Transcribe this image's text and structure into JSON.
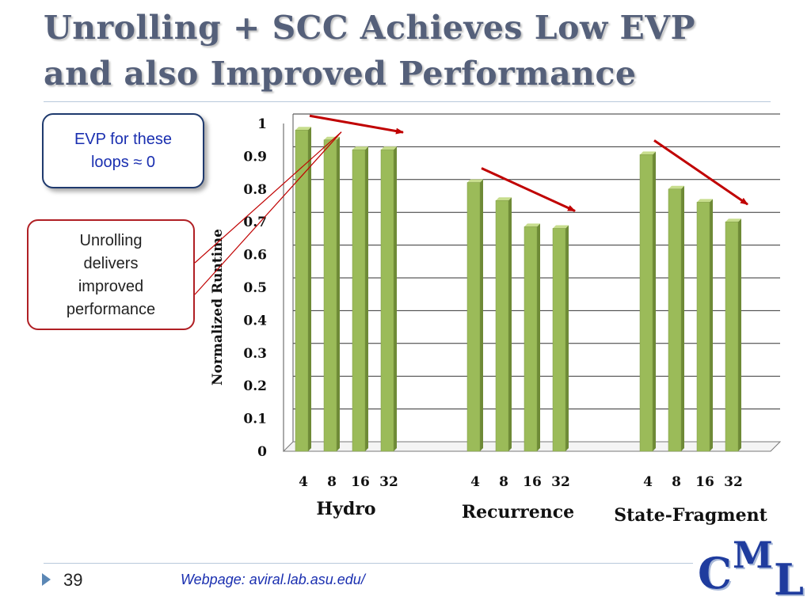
{
  "slide": {
    "title_line1": "Unrolling + SCC Achieves Low EVP",
    "title_line2": "and also Improved Performance",
    "callout_evp_line1": "EVP for these",
    "callout_evp_line2": "loops ≈ 0",
    "callout_unroll_lines": [
      "Unrolling",
      "delivers",
      "improved",
      "performance"
    ],
    "page_number": "39",
    "footer_url": "Webpage: aviral.lab.asu.edu/",
    "logo": {
      "c": "C",
      "m": "M",
      "l": "L"
    }
  },
  "colors": {
    "bar_front": "#9bbb59",
    "bar_side": "#6e8a36",
    "bar_top": "#c7dd8d",
    "arrow": "#c00000",
    "title": "#55607a",
    "callout_evp_text": "#1a2fb0",
    "callout_evp_border": "#1f3a6e",
    "callout_unroll_border": "#b01f24"
  },
  "chart_data": {
    "type": "bar",
    "ylabel": "Normalized Runtime",
    "ylim": [
      0,
      1
    ],
    "yticks": [
      "0",
      "0.1",
      "0.2",
      "0.3",
      "0.4",
      "0.5",
      "0.6",
      "0.7",
      "0.8",
      "0.9",
      "1"
    ],
    "grid": true,
    "groups": [
      {
        "name": "Hydro",
        "categories": [
          "4",
          "8",
          "16",
          "32"
        ],
        "values": [
          0.98,
          0.95,
          0.92,
          0.92
        ]
      },
      {
        "name": "Recurrence",
        "categories": [
          "4",
          "8",
          "16",
          "32"
        ],
        "values": [
          0.82,
          0.765,
          0.685,
          0.68
        ]
      },
      {
        "name": "State-Fragment",
        "categories": [
          "4",
          "8",
          "16",
          "32"
        ],
        "values": [
          0.905,
          0.8,
          0.76,
          0.7
        ]
      }
    ]
  }
}
